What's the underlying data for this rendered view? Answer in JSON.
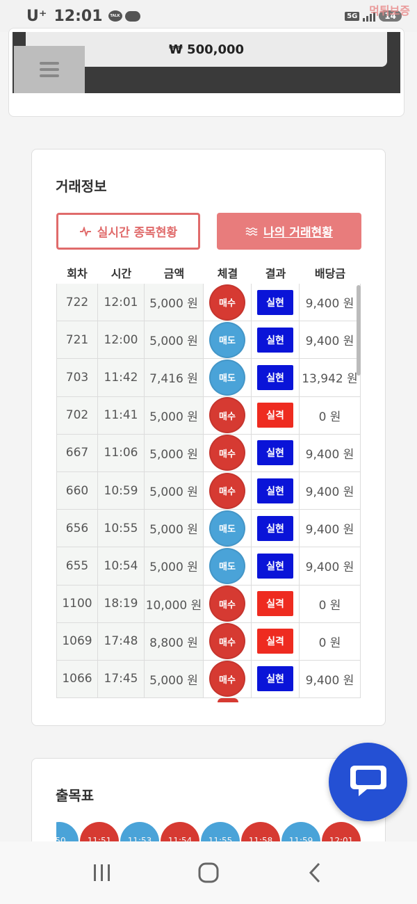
{
  "status_bar": {
    "carrier": "U⁺",
    "time": "12:01",
    "talk_icon_text": "TALK",
    "network": "5G",
    "battery": "14",
    "watermark": "먹튀보증"
  },
  "balance": {
    "amount": "₩ 500,000"
  },
  "trade_info": {
    "title": "거래정보",
    "live_button": "실시간 종목현황",
    "my_button": "나의 거래현황",
    "columns": [
      "회차",
      "시간",
      "금액",
      "체결",
      "결과",
      "배당금"
    ],
    "rows": [
      {
        "round": "722",
        "time": "12:01",
        "amount": "5,000 원",
        "trade": "매수",
        "trade_type": "buy",
        "result": "실현",
        "result_type": "win",
        "payout": "9,400 원"
      },
      {
        "round": "721",
        "time": "12:00",
        "amount": "5,000 원",
        "trade": "매도",
        "trade_type": "sell",
        "result": "실현",
        "result_type": "win",
        "payout": "9,400 원"
      },
      {
        "round": "703",
        "time": "11:42",
        "amount": "7,416 원",
        "trade": "매도",
        "trade_type": "sell",
        "result": "실현",
        "result_type": "win",
        "payout": "13,942 원"
      },
      {
        "round": "702",
        "time": "11:41",
        "amount": "5,000 원",
        "trade": "매수",
        "trade_type": "buy",
        "result": "실격",
        "result_type": "lose",
        "payout": "0 원"
      },
      {
        "round": "667",
        "time": "11:06",
        "amount": "5,000 원",
        "trade": "매수",
        "trade_type": "buy",
        "result": "실현",
        "result_type": "win",
        "payout": "9,400 원"
      },
      {
        "round": "660",
        "time": "10:59",
        "amount": "5,000 원",
        "trade": "매수",
        "trade_type": "buy",
        "result": "실현",
        "result_type": "win",
        "payout": "9,400 원"
      },
      {
        "round": "656",
        "time": "10:55",
        "amount": "5,000 원",
        "trade": "매도",
        "trade_type": "sell",
        "result": "실현",
        "result_type": "win",
        "payout": "9,400 원"
      },
      {
        "round": "655",
        "time": "10:54",
        "amount": "5,000 원",
        "trade": "매도",
        "trade_type": "sell",
        "result": "실현",
        "result_type": "win",
        "payout": "9,400 원"
      },
      {
        "round": "1100",
        "time": "18:19",
        "amount": "10,000 원",
        "trade": "매수",
        "trade_type": "buy",
        "result": "실격",
        "result_type": "lose",
        "payout": "0 원"
      },
      {
        "round": "1069",
        "time": "17:48",
        "amount": "8,800 원",
        "trade": "매수",
        "trade_type": "buy",
        "result": "실격",
        "result_type": "lose",
        "payout": "0 원"
      },
      {
        "round": "1066",
        "time": "17:45",
        "amount": "5,000 원",
        "trade": "매수",
        "trade_type": "buy",
        "result": "실현",
        "result_type": "win",
        "payout": "9,400 원"
      }
    ]
  },
  "result_chart": {
    "title": "출목표",
    "bubbles": [
      {
        "label": ":50",
        "type": "sell"
      },
      {
        "label": "11:51",
        "type": "buy"
      },
      {
        "label": "11:53",
        "type": "sell"
      },
      {
        "label": "11:54",
        "type": "buy"
      },
      {
        "label": "11:55",
        "type": "sell"
      },
      {
        "label": "11:58",
        "type": "buy"
      },
      {
        "label": "11:59",
        "type": "sell"
      },
      {
        "label": "12:01",
        "type": "buy"
      }
    ]
  },
  "colors": {
    "buy": "#d63a32",
    "sell": "#4aa3d8",
    "win": "#0a14d8",
    "lose": "#ee2b20",
    "accent": "#e06b6b",
    "chat": "#2450d4"
  }
}
